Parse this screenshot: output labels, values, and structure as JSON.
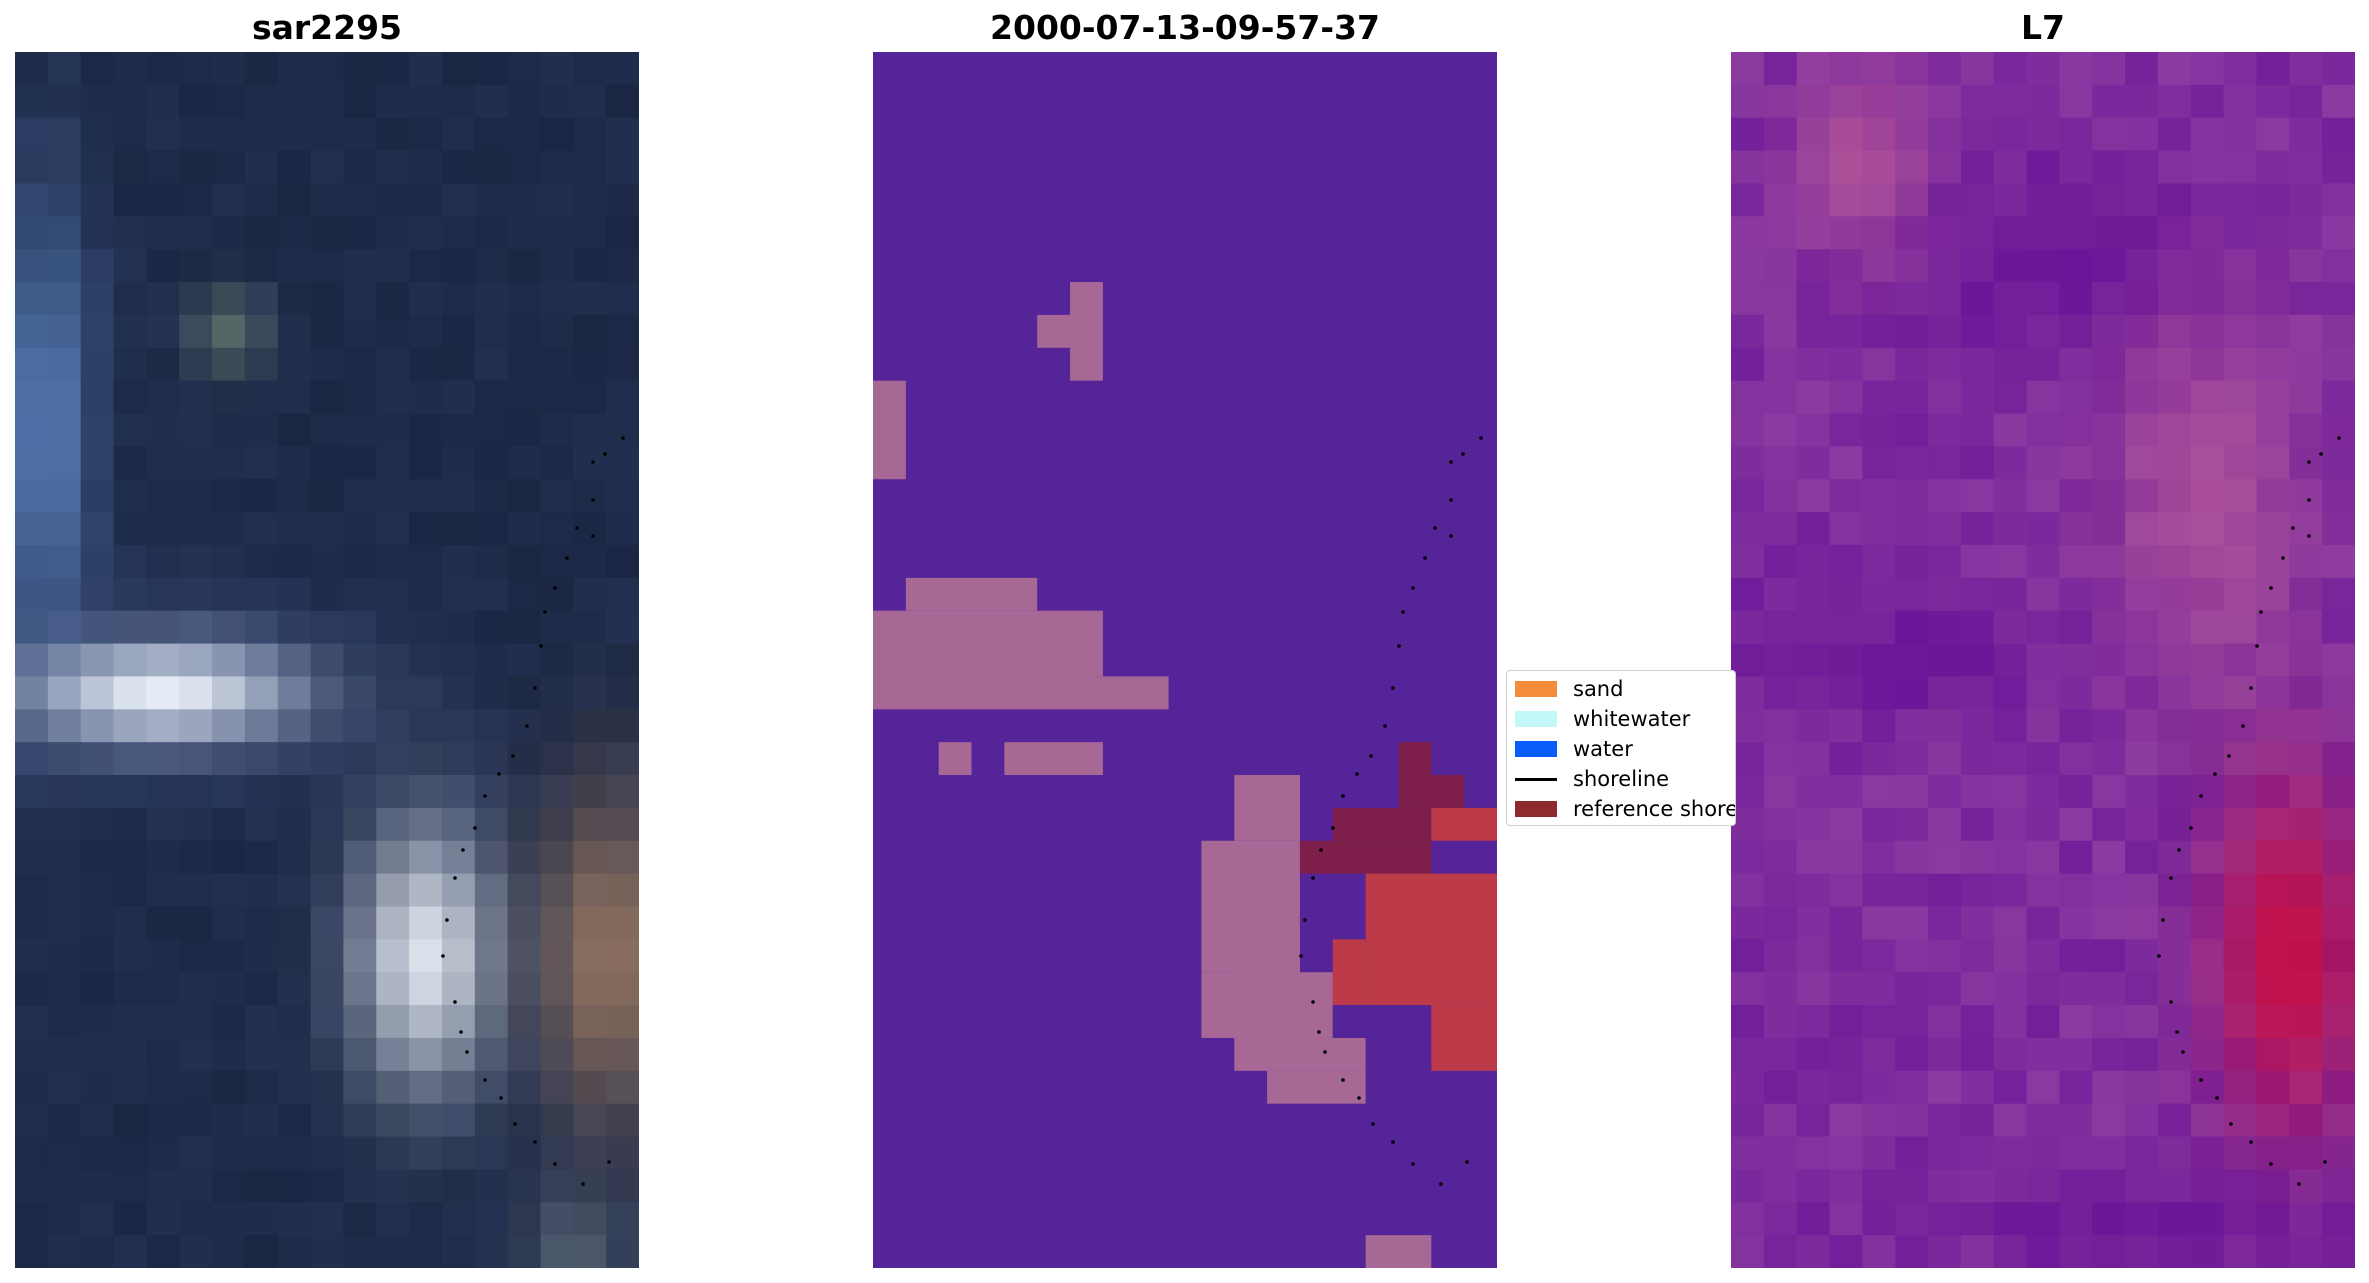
{
  "panels": [
    {
      "title": "sar2295"
    },
    {
      "title": "2000-07-13-09-57-37"
    },
    {
      "title": "L7"
    }
  ],
  "legend": {
    "items": [
      {
        "label": "sand",
        "color": "#f58c3c",
        "kind": "patch"
      },
      {
        "label": "whitewater",
        "color": "#c4f8f8",
        "kind": "patch"
      },
      {
        "label": "water",
        "color": "#0a5cfa",
        "kind": "patch"
      },
      {
        "label": "shoreline",
        "color": "#000000",
        "kind": "line"
      },
      {
        "label": "reference shoreline",
        "color": "#8c2a2e",
        "kind": "patch"
      }
    ]
  },
  "colors": {
    "classification_background": "#542498",
    "classification_sand_overlay": "#a86895",
    "classification_reference": "#bd3a48",
    "classification_reference_dark": "#7d1f4a",
    "sar_dark": "#1a2642",
    "l7_base": "#8a3aa0",
    "l7_hot": "#c90e42"
  }
}
